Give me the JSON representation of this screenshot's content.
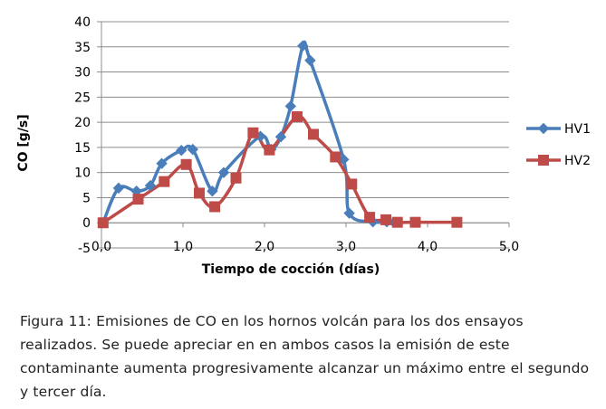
{
  "chart_data": {
    "type": "line",
    "title": "",
    "xlabel": "Tiempo de cocción (días)",
    "ylabel": "CO [g/s]",
    "xlim": [
      0,
      5
    ],
    "ylim": [
      -5,
      40
    ],
    "x_ticks": [
      0,
      1,
      2,
      3,
      4,
      5
    ],
    "x_tick_labels": [
      "0,0",
      "1,0",
      "2,0",
      "3,0",
      "4,0",
      "5,0"
    ],
    "y_ticks": [
      -5,
      0,
      5,
      10,
      15,
      20,
      25,
      30,
      35,
      40
    ],
    "y_tick_labels": [
      "-5",
      "0",
      "5",
      "10",
      "15",
      "20",
      "25",
      "30",
      "35",
      "40"
    ],
    "grid": "horizontal",
    "legend_position": "right",
    "series": [
      {
        "name": "HV1",
        "color": "#4a7ebb",
        "marker": "diamond",
        "x": [
          0.02,
          0.21,
          0.43,
          0.6,
          0.74,
          0.98,
          1.12,
          1.36,
          1.5,
          1.95,
          2.08,
          2.2,
          2.32,
          2.47,
          2.56,
          2.97,
          3.04,
          3.33,
          3.5,
          3.59
        ],
        "y": [
          0,
          6.9,
          6.3,
          7.4,
          11.8,
          14.4,
          14.6,
          6.3,
          10,
          17.2,
          14.6,
          17.1,
          23.2,
          35.2,
          32.3,
          12.6,
          1.9,
          0.2,
          0.2,
          0.1
        ]
      },
      {
        "name": "HV2",
        "color": "#be4b48",
        "marker": "square",
        "x": [
          0.02,
          0.45,
          0.77,
          1.04,
          1.2,
          1.39,
          1.65,
          1.86,
          2.06,
          2.4,
          2.6,
          2.87,
          3.07,
          3.29,
          3.49,
          3.63,
          3.85,
          4.36
        ],
        "y": [
          0,
          4.7,
          8.2,
          11.6,
          5.9,
          3.2,
          8.9,
          17.9,
          14.5,
          21.1,
          17.6,
          13.1,
          7.7,
          1.1,
          0.6,
          0.1,
          0.1,
          0.1
        ]
      }
    ]
  },
  "caption": {
    "label": "Figura 11",
    "text": ": Emisiones de CO en los hornos volcán para los dos ensayos realizados. Se puede apreciar en en ambos casos la emisión de este contaminante aumenta progresivamente alcanzar un máximo entre el segundo y tercer día."
  }
}
